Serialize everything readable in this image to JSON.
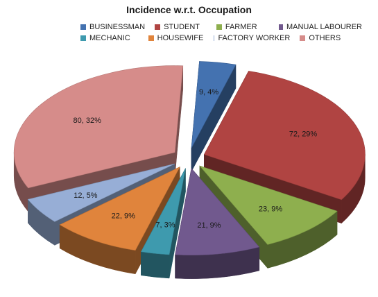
{
  "chart_data": {
    "type": "pie",
    "title": "Incidence w.r.t. Occupation",
    "legend_position": "top",
    "exploded": true,
    "three_d": true,
    "slices": [
      {
        "name": "BUSINESSMAN",
        "value": 9,
        "percent": 4,
        "label": "9, 4%",
        "color": "#4472b0"
      },
      {
        "name": "STUDENT",
        "value": 72,
        "percent": 29,
        "label": "72, 29%",
        "color": "#b04442"
      },
      {
        "name": "FARMER",
        "value": 23,
        "percent": 9,
        "label": "23, 9%",
        "color": "#8eaf4e"
      },
      {
        "name": "MANUAL LABOURER",
        "value": 21,
        "percent": 9,
        "label": "21, 9%",
        "color": "#71598e"
      },
      {
        "name": "MECHANIC",
        "value": 7,
        "percent": 3,
        "label": "7, 3%",
        "color": "#3e9aae"
      },
      {
        "name": "HOUSEWIFE",
        "value": 22,
        "percent": 9,
        "label": "22, 9%",
        "color": "#e0843c"
      },
      {
        "name": "FACTORY WORKER",
        "value": 12,
        "percent": 5,
        "label": "12, 5%",
        "color": "#97aed6"
      },
      {
        "name": "OTHERS",
        "value": 80,
        "percent": 32,
        "label": "80, 32%",
        "color": "#d68c8a"
      }
    ]
  }
}
